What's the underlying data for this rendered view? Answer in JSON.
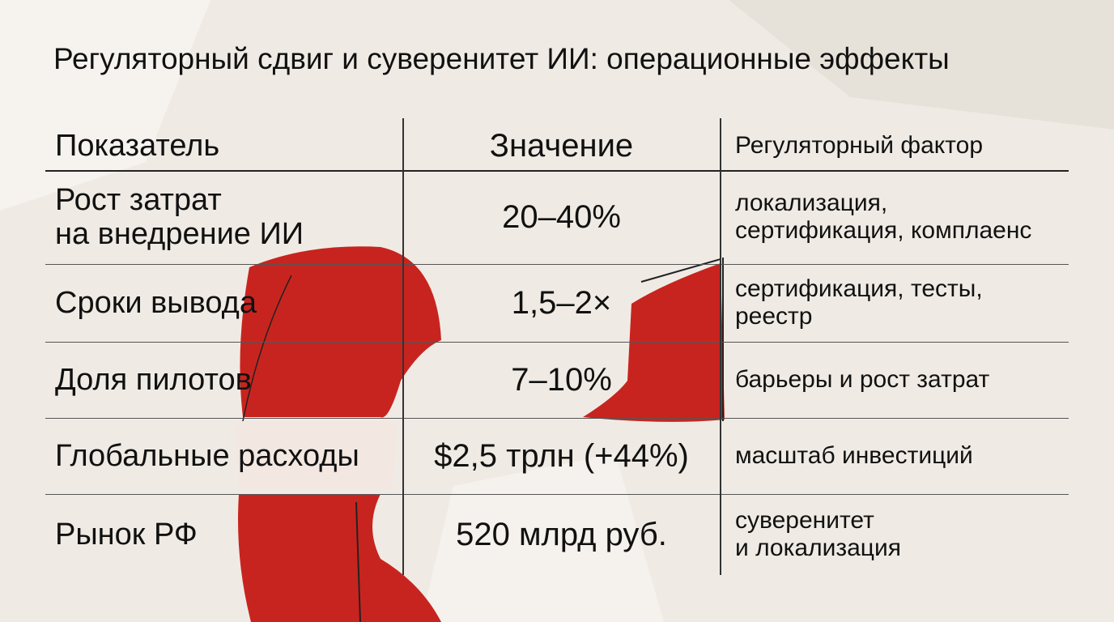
{
  "title": "Регуляторный сдвиг и суверенитет ИИ: операционные эффекты",
  "table": {
    "headers": [
      "Показатель",
      "Значение",
      "Регуляторный фактор"
    ],
    "rows": [
      [
        "Рост затрат\nна внедрение ИИ",
        "20–40%",
        "локализация,\nсертификация, комплаенс"
      ],
      [
        "Сроки вывода",
        "1,5–2×",
        "сертификация, тесты,\nреестр"
      ],
      [
        "Доля пилотов",
        "7–10%",
        "барьеры и рост затрат"
      ],
      [
        "Глобальные расходы",
        "$2,5 трлн (+44%)",
        "масштаб инвестиций"
      ],
      [
        "Рынок РФ",
        "520 млрд руб.",
        "суверенитет\nи локализация"
      ]
    ]
  }
}
